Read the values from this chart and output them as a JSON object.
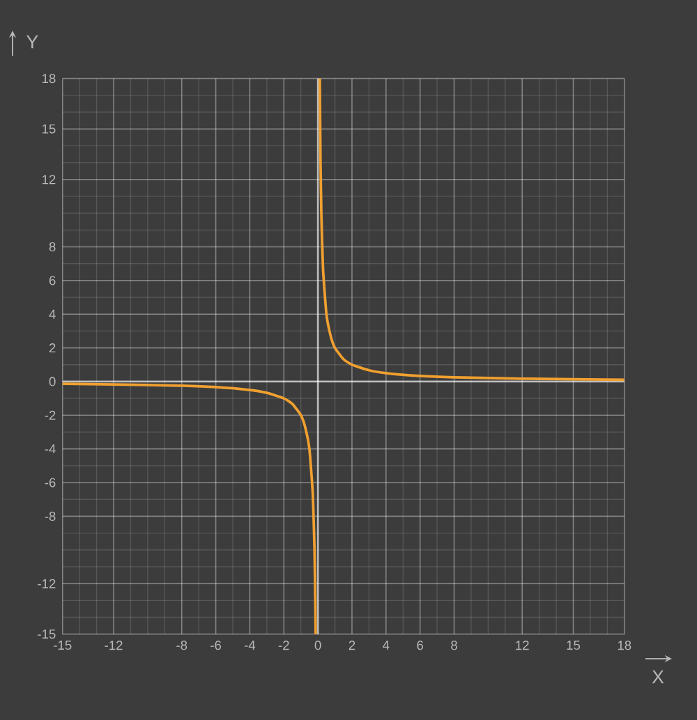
{
  "chart_data": {
    "type": "line",
    "xlabel": "X",
    "ylabel": "Y",
    "xlim": [
      -15,
      18
    ],
    "ylim": [
      -15,
      18
    ],
    "xticks": [
      -15,
      -12,
      -8,
      -6,
      -4,
      -2,
      0,
      2,
      4,
      6,
      8,
      12,
      15,
      18
    ],
    "yticks": [
      -15,
      -12,
      -8,
      -6,
      -4,
      -2,
      0,
      2,
      4,
      6,
      8,
      12,
      15,
      18
    ],
    "grid": true,
    "marker": "none",
    "line_style": "solid",
    "series": [
      {
        "color": "#f0a030",
        "x": [
          0.111,
          0.15,
          0.2,
          0.3,
          0.5,
          0.75,
          1,
          1.5,
          2,
          3,
          4,
          6,
          8,
          12,
          18
        ],
        "values": [
          18,
          13.3,
          10,
          6.7,
          4,
          2.7,
          2,
          1.33,
          1,
          0.67,
          0.5,
          0.33,
          0.25,
          0.17,
          0.11
        ]
      },
      {
        "color": "#f0a030",
        "x": [
          -15,
          -12,
          -8,
          -6,
          -4,
          -3,
          -2,
          -1.5,
          -1,
          -0.75,
          -0.5,
          -0.3,
          -0.2,
          -0.15,
          -0.133
        ],
        "values": [
          -0.13,
          -0.17,
          -0.25,
          -0.33,
          -0.5,
          -0.67,
          -1,
          -1.33,
          -2,
          -2.7,
          -4,
          -6.7,
          -10,
          -13.3,
          -15
        ]
      }
    ]
  }
}
